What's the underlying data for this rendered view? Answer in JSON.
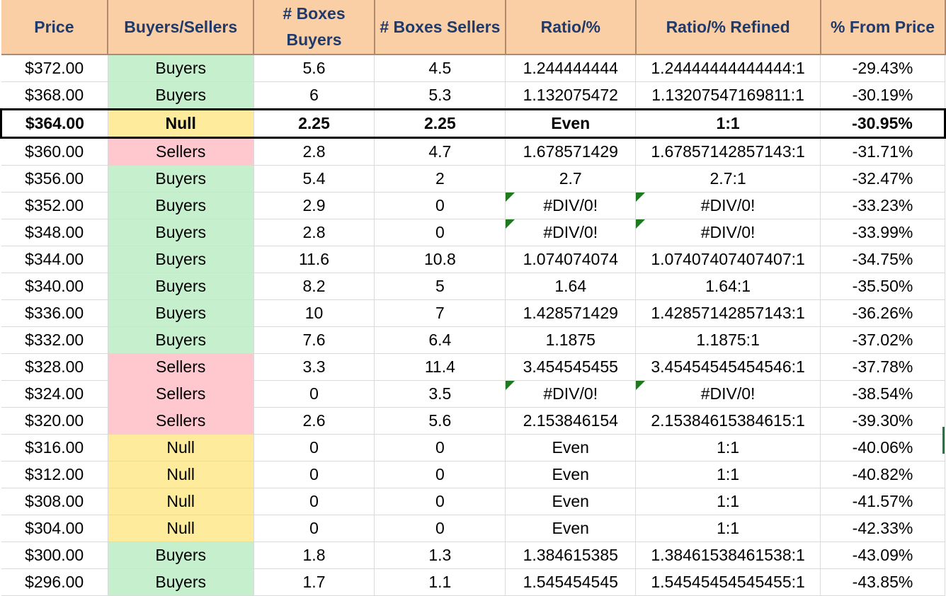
{
  "headers": [
    "Price",
    "Buyers/Sellers",
    "# Boxes Buyers",
    "# Boxes Sellers",
    "Ratio/%",
    "Ratio/% Refined",
    "% From Price"
  ],
  "header_lines": {
    "boxes_buyers": [
      "# Boxes",
      "Buyers"
    ]
  },
  "colors": {
    "header_bg": "#fbcfa5",
    "header_text": "#1f3a6b",
    "buyers_bg": "#c6efce",
    "buyers_text": "#116b16",
    "sellers_bg": "#ffc7ce",
    "sellers_text": "#9c0006",
    "null_bg": "#ffeb9c",
    "null_text": "#9c5700",
    "error_indicator": "#1e7a1e"
  },
  "rows": [
    {
      "price": "$372.00",
      "side": "Buyers",
      "kind": "buyers",
      "bb": "5.6",
      "bs": "4.5",
      "ratio": "1.244444444",
      "refined": "1.24444444444444:1",
      "pct": "-29.43%",
      "err": false,
      "highlight": false
    },
    {
      "price": "$368.00",
      "side": "Buyers",
      "kind": "buyers",
      "bb": "6",
      "bs": "5.3",
      "ratio": "1.132075472",
      "refined": "1.13207547169811:1",
      "pct": "-30.19%",
      "err": false,
      "highlight": false
    },
    {
      "price": "$364.00",
      "side": "Null",
      "kind": "null",
      "bb": "2.25",
      "bs": "2.25",
      "ratio": "Even",
      "refined": "1:1",
      "pct": "-30.95%",
      "err": false,
      "highlight": true
    },
    {
      "price": "$360.00",
      "side": "Sellers",
      "kind": "sellers",
      "bb": "2.8",
      "bs": "4.7",
      "ratio": "1.678571429",
      "refined": "1.67857142857143:1",
      "pct": "-31.71%",
      "err": false,
      "highlight": false
    },
    {
      "price": "$356.00",
      "side": "Buyers",
      "kind": "buyers",
      "bb": "5.4",
      "bs": "2",
      "ratio": "2.7",
      "refined": "2.7:1",
      "pct": "-32.47%",
      "err": false,
      "highlight": false
    },
    {
      "price": "$352.00",
      "side": "Buyers",
      "kind": "buyers",
      "bb": "2.9",
      "bs": "0",
      "ratio": "#DIV/0!",
      "refined": "#DIV/0!",
      "pct": "-33.23%",
      "err": true,
      "highlight": false
    },
    {
      "price": "$348.00",
      "side": "Buyers",
      "kind": "buyers",
      "bb": "2.8",
      "bs": "0",
      "ratio": "#DIV/0!",
      "refined": "#DIV/0!",
      "pct": "-33.99%",
      "err": true,
      "highlight": false
    },
    {
      "price": "$344.00",
      "side": "Buyers",
      "kind": "buyers",
      "bb": "11.6",
      "bs": "10.8",
      "ratio": "1.074074074",
      "refined": "1.07407407407407:1",
      "pct": "-34.75%",
      "err": false,
      "highlight": false
    },
    {
      "price": "$340.00",
      "side": "Buyers",
      "kind": "buyers",
      "bb": "8.2",
      "bs": "5",
      "ratio": "1.64",
      "refined": "1.64:1",
      "pct": "-35.50%",
      "err": false,
      "highlight": false
    },
    {
      "price": "$336.00",
      "side": "Buyers",
      "kind": "buyers",
      "bb": "10",
      "bs": "7",
      "ratio": "1.428571429",
      "refined": "1.42857142857143:1",
      "pct": "-36.26%",
      "err": false,
      "highlight": false
    },
    {
      "price": "$332.00",
      "side": "Buyers",
      "kind": "buyers",
      "bb": "7.6",
      "bs": "6.4",
      "ratio": "1.1875",
      "refined": "1.1875:1",
      "pct": "-37.02%",
      "err": false,
      "highlight": false
    },
    {
      "price": "$328.00",
      "side": "Sellers",
      "kind": "sellers",
      "bb": "3.3",
      "bs": "11.4",
      "ratio": "3.454545455",
      "refined": "3.45454545454546:1",
      "pct": "-37.78%",
      "err": false,
      "highlight": false
    },
    {
      "price": "$324.00",
      "side": "Sellers",
      "kind": "sellers",
      "bb": "0",
      "bs": "3.5",
      "ratio": "#DIV/0!",
      "refined": "#DIV/0!",
      "pct": "-38.54%",
      "err": true,
      "highlight": false
    },
    {
      "price": "$320.00",
      "side": "Sellers",
      "kind": "sellers",
      "bb": "2.6",
      "bs": "5.6",
      "ratio": "2.153846154",
      "refined": "2.15384615384615:1",
      "pct": "-39.30%",
      "err": false,
      "highlight": false
    },
    {
      "price": "$316.00",
      "side": "Null",
      "kind": "null",
      "bb": "0",
      "bs": "0",
      "ratio": "Even",
      "refined": "1:1",
      "pct": "-40.06%",
      "err": false,
      "highlight": false
    },
    {
      "price": "$312.00",
      "side": "Null",
      "kind": "null",
      "bb": "0",
      "bs": "0",
      "ratio": "Even",
      "refined": "1:1",
      "pct": "-40.82%",
      "err": false,
      "highlight": false
    },
    {
      "price": "$308.00",
      "side": "Null",
      "kind": "null",
      "bb": "0",
      "bs": "0",
      "ratio": "Even",
      "refined": "1:1",
      "pct": "-41.57%",
      "err": false,
      "highlight": false
    },
    {
      "price": "$304.00",
      "side": "Null",
      "kind": "null",
      "bb": "0",
      "bs": "0",
      "ratio": "Even",
      "refined": "1:1",
      "pct": "-42.33%",
      "err": false,
      "highlight": false
    },
    {
      "price": "$300.00",
      "side": "Buyers",
      "kind": "buyers",
      "bb": "1.8",
      "bs": "1.3",
      "ratio": "1.384615385",
      "refined": "1.38461538461538:1",
      "pct": "-43.09%",
      "err": false,
      "highlight": false
    },
    {
      "price": "$296.00",
      "side": "Buyers",
      "kind": "buyers",
      "bb": "1.7",
      "bs": "1.1",
      "ratio": "1.545454545",
      "refined": "1.54545454545455:1",
      "pct": "-43.85%",
      "err": false,
      "highlight": false
    }
  ]
}
